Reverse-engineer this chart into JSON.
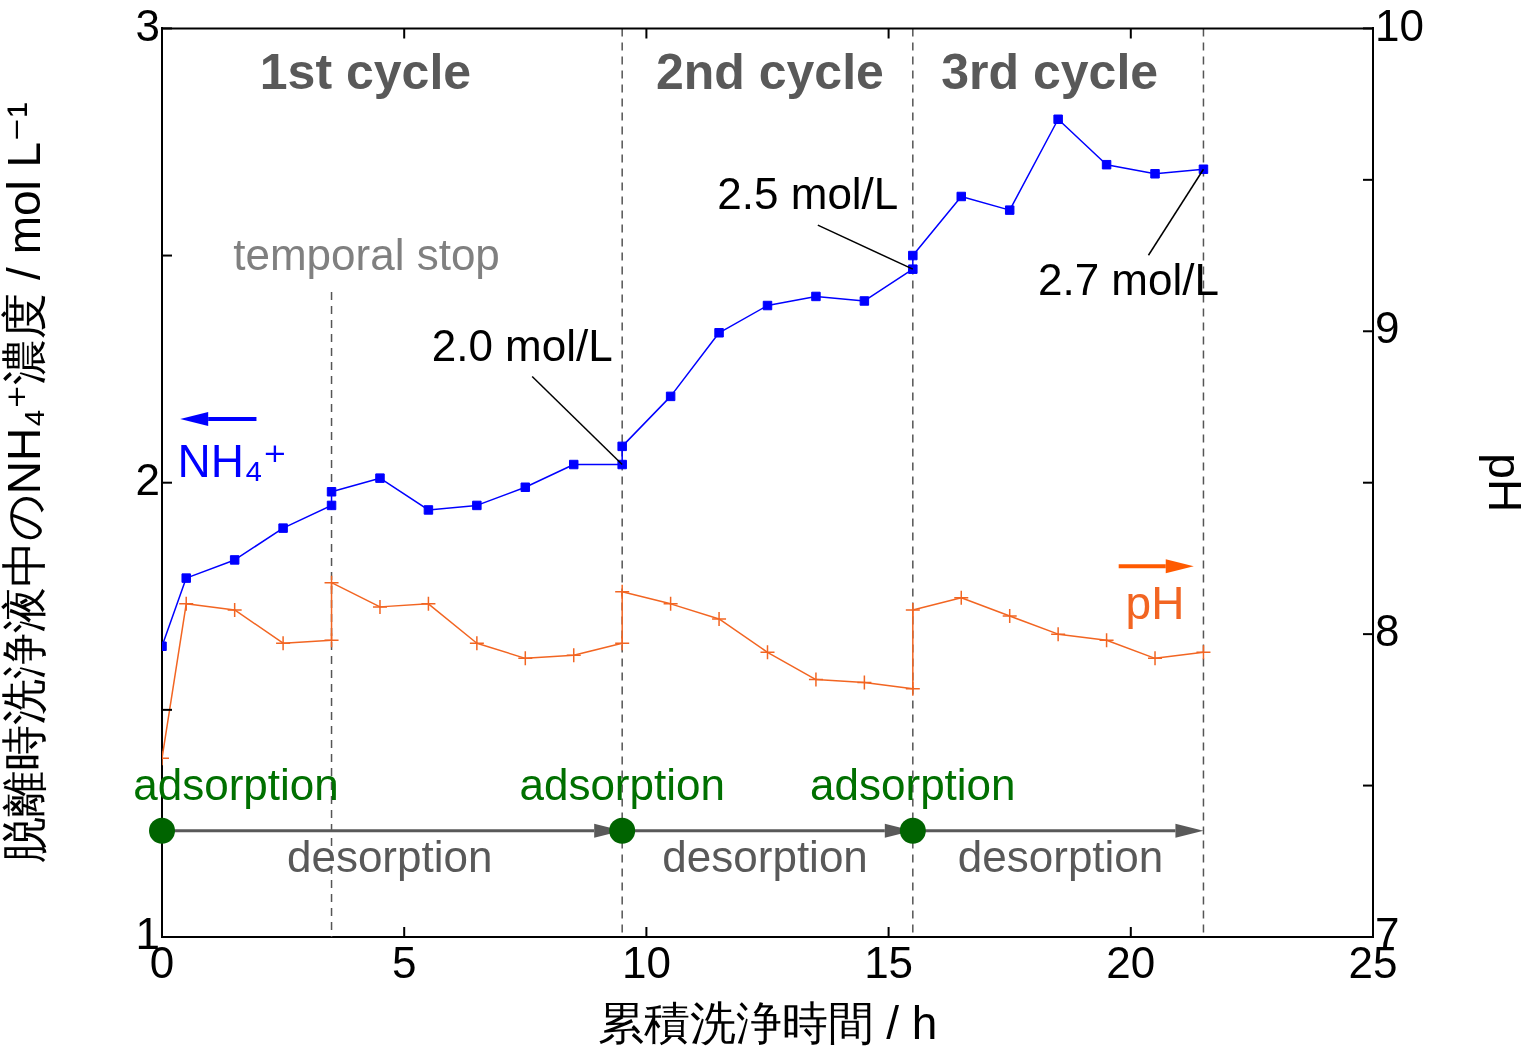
{
  "chart_data": {
    "type": "line",
    "xlabel": "累積洗浄時間 / h",
    "ylabel": "脱離時洗浄液中のNH₄⁺濃度 / mol L⁻¹",
    "y2label": "pH",
    "xlim": [
      0,
      25
    ],
    "xticks": [
      0,
      5,
      10,
      15,
      20,
      25
    ],
    "ylim": [
      1,
      3
    ],
    "yticks": [
      1,
      {
        "value": 1.5,
        "label": null
      },
      2,
      {
        "value": 2.5,
        "label": null
      },
      3
    ],
    "y2lim": [
      7,
      10
    ],
    "y2ticks": [
      7,
      {
        "value": 7.5,
        "label": null
      },
      8,
      {
        "value": 8.5,
        "label": null
      },
      9,
      {
        "value": 9.5,
        "label": null
      },
      10
    ],
    "grid": false,
    "legend": "left",
    "series": [
      {
        "name": "NH₄⁺",
        "color": "#0000ff",
        "marker": "square",
        "x": [
          0,
          0.5,
          1.5,
          2.5,
          3.5,
          3.5,
          4.5,
          5.5,
          6.5,
          7.5,
          8.5,
          9.5,
          9.5,
          10.5,
          11.5,
          12.5,
          13.5,
          14.5,
          15.5,
          15.5,
          16.5,
          17.5,
          18.5,
          19.5,
          20.5,
          21.5
        ],
        "values": [
          1.64,
          1.79,
          1.83,
          1.9,
          1.95,
          1.98,
          2.01,
          1.94,
          1.95,
          1.99,
          2.04,
          2.04,
          2.08,
          2.19,
          2.33,
          2.39,
          2.41,
          2.4,
          2.47,
          2.5,
          2.63,
          2.6,
          2.8,
          2.7,
          2.68,
          2.69
        ]
      },
      {
        "name": "pH",
        "color": "#f26522",
        "marker": "cross",
        "axis": "y2",
        "x": [
          0,
          0.5,
          1.5,
          2.5,
          3.5,
          3.5,
          4.5,
          5.5,
          6.5,
          7.5,
          8.5,
          9.5,
          9.5,
          10.5,
          11.5,
          12.5,
          13.5,
          14.5,
          15.5,
          15.5,
          16.5,
          17.5,
          18.5,
          19.5,
          20.5,
          21.5
        ],
        "values": [
          7.59,
          8.1,
          8.08,
          7.97,
          7.98,
          8.17,
          8.09,
          8.1,
          7.97,
          7.92,
          7.93,
          7.97,
          8.14,
          8.1,
          8.05,
          7.94,
          7.85,
          7.84,
          7.82,
          8.08,
          8.12,
          8.06,
          8.0,
          7.98,
          7.92,
          7.94
        ]
      }
    ],
    "ref_lines": [
      {
        "axis": "x",
        "value": 3.5,
        "label": "temporal stop",
        "color": "#555555",
        "line_style": "dashed"
      },
      {
        "axis": "x",
        "value": 9.5,
        "color": "#555555",
        "line_style": "dashed"
      },
      {
        "axis": "x",
        "value": 15.5,
        "color": "#555555",
        "line_style": "dashed"
      },
      {
        "axis": "x",
        "value": 21.5,
        "color": "#555555",
        "line_style": "dashed"
      }
    ],
    "annotations": [
      "1st cycle",
      "2nd cycle",
      "3rd cycle",
      {
        "text": "2.0 mol/L",
        "x": 9.5,
        "y": 2.04
      },
      {
        "text": "2.5 mol/L",
        "x": 15.5,
        "y": 2.47
      },
      {
        "text": "2.7 mol/L",
        "x": 21.5,
        "y": 2.69
      },
      {
        "text": "adsorption",
        "x": 0,
        "y": 1.235
      },
      {
        "text": "adsorption",
        "x": 9.5,
        "y": 1.235
      },
      {
        "text": "adsorption",
        "x": 15.5,
        "y": 1.235
      },
      "desorption",
      "desorption",
      "desorption"
    ]
  }
}
